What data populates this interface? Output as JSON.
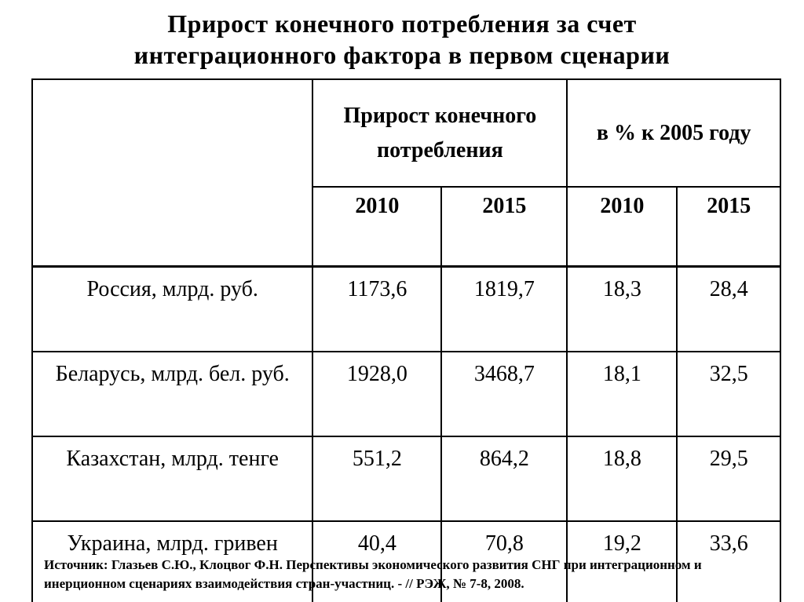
{
  "title": {
    "lines": [
      "Прирост конечного потребления за счет",
      "интеграционного фактора в первом сценарии"
    ]
  },
  "table": {
    "column_groups": [
      "Прирост конечного потребления",
      "в % к 2005 году"
    ],
    "year_headers": [
      "2010",
      "2015",
      "2010",
      "2015"
    ],
    "rows": [
      {
        "label": "Россия, млрд. руб.",
        "values": [
          "1173,6",
          "1819,7",
          "18,3",
          "28,4"
        ]
      },
      {
        "label": "Беларусь, млрд. бел. руб.",
        "values": [
          "1928,0",
          "3468,7",
          "18,1",
          "32,5"
        ]
      },
      {
        "label": "Казахстан, млрд. тенге",
        "values": [
          "551,2",
          "864,2",
          "18,8",
          "29,5"
        ]
      },
      {
        "label": "Украина, млрд. гривен",
        "values": [
          "40,4",
          "70,8",
          "19,2",
          "33,6"
        ]
      }
    ]
  },
  "source": {
    "lines": [
      "Источник: Глазьев С.Ю., Клоцвог Ф.Н. Перспективы экономического развития СНГ при интеграционном и",
      "инерционном сценариях взаимодействия стран-участниц. - // РЭЖ, № 7-8, 2008."
    ]
  },
  "colors": {
    "background": "#ffffff",
    "text": "#000000",
    "border": "#000000"
  }
}
